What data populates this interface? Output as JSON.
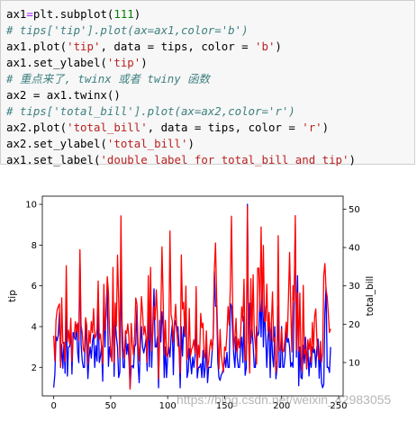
{
  "code": {
    "lines": [
      [
        {
          "t": "ax1"
        },
        {
          "t": "=",
          "k": "o"
        },
        {
          "t": "plt.subplot("
        },
        {
          "t": "111",
          "k": "n"
        },
        {
          "t": ")"
        }
      ],
      [
        {
          "t": "# tips['tip'].plot(ax=ax1,color='b')",
          "k": "c"
        }
      ],
      [
        {
          "t": "ax1.plot("
        },
        {
          "t": "'tip'",
          "k": "s"
        },
        {
          "t": ", data = tips, color = "
        },
        {
          "t": "'b'",
          "k": "s"
        },
        {
          "t": ")"
        }
      ],
      [
        {
          "t": "ax1.set_ylabel("
        },
        {
          "t": "'tip'",
          "k": "s"
        },
        {
          "t": ")"
        }
      ],
      [
        {
          "t": "# 重点来了, twinx 或者 twiny 函数",
          "k": "c"
        }
      ],
      [
        {
          "t": "ax2 = ax1.twinx()"
        }
      ],
      [
        {
          "t": "# tips['total_bill'].plot(ax=ax2,color='r')",
          "k": "c"
        }
      ],
      [
        {
          "t": "ax2.plot("
        },
        {
          "t": "'total_bill'",
          "k": "s"
        },
        {
          "t": ", data = tips, color = "
        },
        {
          "t": "'r'",
          "k": "s"
        },
        {
          "t": ")"
        }
      ],
      [
        {
          "t": "ax2.set_ylabel("
        },
        {
          "t": "'total_bill'",
          "k": "s"
        },
        {
          "t": ")"
        }
      ],
      [
        {
          "t": "ax1.set_label("
        },
        {
          "t": "'double label for total_bill and tip'",
          "k": "s"
        },
        {
          "t": ")"
        }
      ]
    ]
  },
  "watermark": "https://blog.csdn.net/weixin_42983055",
  "chart_data": {
    "type": "line",
    "xlabel": "",
    "x_ticks": [
      0,
      50,
      100,
      150,
      200,
      250
    ],
    "xlim": [
      -10,
      254
    ],
    "left_axis": {
      "label": "tip",
      "ticks": [
        2,
        4,
        6,
        8,
        10
      ],
      "ylim": [
        0.6,
        10.4
      ]
    },
    "right_axis": {
      "label": "total_bill",
      "ticks": [
        10,
        20,
        30,
        40,
        50
      ],
      "ylim": [
        1.3,
        53.4
      ]
    },
    "grid": false,
    "series": [
      {
        "name": "tip",
        "axis": "left",
        "color": "#0000ff",
        "values": [
          1.01,
          1.66,
          3.5,
          3.31,
          3.61,
          4.71,
          2.0,
          3.12,
          1.96,
          3.23,
          1.71,
          5.0,
          1.57,
          3.0,
          3.02,
          3.92,
          1.67,
          3.71,
          3.5,
          3.35,
          4.08,
          2.75,
          2.23,
          7.58,
          3.18,
          2.34,
          2.0,
          2.0,
          4.3,
          3.0,
          1.45,
          2.5,
          3.0,
          2.45,
          3.27,
          3.6,
          2.0,
          3.07,
          2.31,
          5.0,
          2.24,
          2.54,
          3.06,
          1.32,
          5.6,
          3.0,
          5.0,
          6.0,
          2.05,
          3.0,
          2.5,
          2.6,
          5.2,
          1.56,
          4.34,
          3.51,
          3.0,
          1.5,
          1.76,
          6.73,
          3.21,
          2.0,
          1.98,
          3.76,
          2.64,
          3.15,
          2.47,
          1.0,
          2.01,
          2.09,
          1.97,
          3.0,
          3.14,
          5.0,
          2.2,
          1.25,
          3.08,
          4.0,
          3.0,
          2.71,
          3.0,
          3.4,
          1.83,
          5.0,
          2.03,
          5.17,
          2.0,
          4.0,
          5.85,
          3.0,
          3.0,
          3.5,
          1.0,
          4.3,
          3.25,
          4.73,
          4.0,
          1.5,
          3.0,
          1.5,
          2.5,
          3.0,
          2.5,
          3.48,
          4.08,
          1.64,
          4.06,
          4.29,
          3.76,
          4.0,
          3.0,
          1.0,
          4.0,
          2.55,
          4.0,
          3.5,
          5.07,
          1.5,
          1.8,
          2.92,
          2.31,
          1.68,
          2.5,
          2.0,
          2.52,
          4.2,
          1.48,
          2.0,
          2.0,
          2.18,
          1.5,
          2.83,
          1.5,
          2.0,
          3.25,
          1.25,
          2.0,
          2.0,
          2.0,
          2.75,
          3.5,
          6.7,
          5.0,
          5.0,
          2.3,
          1.5,
          1.36,
          1.63,
          1.73,
          2.0,
          2.5,
          2.0,
          2.74,
          2.0,
          2.0,
          5.14,
          5.0,
          3.75,
          2.61,
          2.0,
          3.5,
          2.5,
          2.0,
          2.0,
          3.0,
          3.48,
          2.24,
          4.5,
          1.61,
          2.0,
          10.0,
          3.16,
          5.15,
          3.18,
          4.0,
          3.11,
          2.0,
          2.0,
          4.0,
          3.55,
          3.68,
          5.65,
          3.5,
          6.5,
          3.0,
          5.0,
          3.5,
          2.0,
          3.5,
          4.0,
          1.5,
          4.19,
          2.56,
          2.02,
          4.0,
          1.44,
          2.0,
          5.0,
          2.0,
          2.0,
          4.0,
          2.01,
          2.0,
          2.5,
          4.0,
          3.23,
          3.41,
          3.0,
          2.03,
          2.23,
          2.0,
          5.16,
          9.0,
          2.5,
          6.5,
          1.1,
          3.0,
          1.5,
          1.44,
          3.09,
          2.2,
          3.48,
          1.92,
          3.0,
          1.58,
          2.5,
          2.0,
          3.0,
          2.72,
          2.88,
          2.0,
          3.0,
          3.39,
          1.47,
          3.0,
          1.25,
          1.0,
          1.17,
          4.67,
          5.92,
          2.0,
          2.0,
          1.75,
          3.0
        ]
      },
      {
        "name": "total_bill",
        "axis": "right",
        "color": "#ff0000",
        "values": [
          16.99,
          10.34,
          21.01,
          23.68,
          24.59,
          25.29,
          8.77,
          26.88,
          15.04,
          14.78,
          10.27,
          35.26,
          15.42,
          18.43,
          14.83,
          21.58,
          10.33,
          16.29,
          16.97,
          20.65,
          17.92,
          20.29,
          15.77,
          39.42,
          19.82,
          17.81,
          13.37,
          12.69,
          21.7,
          19.65,
          9.55,
          18.35,
          15.06,
          20.69,
          17.78,
          24.06,
          16.31,
          16.93,
          18.69,
          31.27,
          16.04,
          17.46,
          13.94,
          9.68,
          30.4,
          18.29,
          22.23,
          32.4,
          28.55,
          18.04,
          12.54,
          10.29,
          34.81,
          9.94,
          25.56,
          19.49,
          38.01,
          26.41,
          11.24,
          48.27,
          20.29,
          13.81,
          11.02,
          18.29,
          17.59,
          20.08,
          16.45,
          3.07,
          20.23,
          15.01,
          12.02,
          17.07,
          26.86,
          25.28,
          14.73,
          10.51,
          17.92,
          27.2,
          22.76,
          17.29,
          19.44,
          16.66,
          10.07,
          32.68,
          15.98,
          34.83,
          13.03,
          18.28,
          24.71,
          21.16,
          28.97,
          22.49,
          5.75,
          16.32,
          22.75,
          40.17,
          27.28,
          12.03,
          21.01,
          12.46,
          11.35,
          15.38,
          44.3,
          22.42,
          20.92,
          15.36,
          20.49,
          25.21,
          18.24,
          14.31,
          14.0,
          7.25,
          38.07,
          23.95,
          25.71,
          17.31,
          29.93,
          10.65,
          12.43,
          24.08,
          11.69,
          13.42,
          14.26,
          15.95,
          12.48,
          29.8,
          8.52,
          14.52,
          11.38,
          22.82,
          19.08,
          20.27,
          11.17,
          12.26,
          18.26,
          8.51,
          10.33,
          14.15,
          16.0,
          13.16,
          17.47,
          34.3,
          41.19,
          27.05,
          16.43,
          8.35,
          18.64,
          11.87,
          9.78,
          7.51,
          14.07,
          13.13,
          17.26,
          24.55,
          19.77,
          29.85,
          48.17,
          25.0,
          13.39,
          16.49,
          21.5,
          12.66,
          16.21,
          13.81,
          17.51,
          24.52,
          20.76,
          31.71,
          10.59,
          10.63,
          50.81,
          15.81,
          7.25,
          31.85,
          16.82,
          32.9,
          17.89,
          14.48,
          9.6,
          34.63,
          34.65,
          23.33,
          45.35,
          23.17,
          40.55,
          20.69,
          20.9,
          30.46,
          18.15,
          23.1,
          15.69,
          19.81,
          28.44,
          15.48,
          16.58,
          7.56,
          10.34,
          43.11,
          13.0,
          13.51,
          18.71,
          12.74,
          13.0,
          16.4,
          20.53,
          16.47,
          26.59,
          38.73,
          24.27,
          12.76,
          30.06,
          25.89,
          48.33,
          13.27,
          28.17,
          12.9,
          28.15,
          11.59,
          7.74,
          30.14,
          12.16,
          13.42,
          8.58,
          15.98,
          13.42,
          16.27,
          10.09,
          20.45,
          13.28,
          22.12,
          24.01,
          15.69,
          11.61,
          10.77,
          15.53,
          10.07,
          12.6,
          32.83,
          35.83,
          29.03,
          27.18,
          22.67,
          17.82,
          18.78
        ]
      }
    ]
  }
}
